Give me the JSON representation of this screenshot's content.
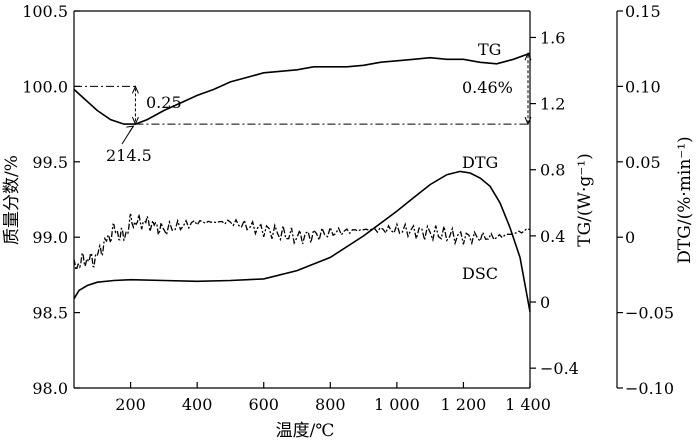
{
  "chart_data": {
    "type": "line",
    "x_axis": {
      "label": "温度/℃",
      "range": [
        30,
        1400
      ],
      "ticks": [
        200,
        400,
        600,
        800,
        1000,
        1200,
        1400
      ],
      "tick_labels": [
        "200",
        "400",
        "600",
        "800",
        "1 000",
        "1 200",
        "1 400"
      ]
    },
    "y_left": {
      "label": "质量分数/%",
      "range": [
        98.0,
        100.5
      ],
      "ticks": [
        98.0,
        98.5,
        99.0,
        99.5,
        100.0,
        100.5
      ],
      "tick_labels": [
        "98.0",
        "98.5",
        "99.0",
        "99.5",
        "100.0",
        "100.5"
      ]
    },
    "y_mid": {
      "label": "TG/(W·g⁻¹)",
      "range": [
        -0.52,
        1.76
      ],
      "ticks": [
        -0.4,
        0,
        0.4,
        0.8,
        1.2,
        1.6
      ],
      "tick_labels": [
        "−0.4",
        "0",
        "0.4",
        "0.8",
        "1.2",
        "1.6"
      ]
    },
    "y_right": {
      "label": "DTG/(%·min⁻¹)",
      "range": [
        -0.1,
        0.15
      ],
      "ticks": [
        -0.1,
        -0.05,
        0,
        0.05,
        0.1,
        0.15
      ],
      "tick_labels": [
        "−0.10",
        "−0.05",
        "0",
        "0.05",
        "0.10",
        "0.15"
      ]
    },
    "series": [
      {
        "name": "TG",
        "axis": "left",
        "style": "solid",
        "x": [
          30,
          60,
          100,
          140,
          180,
          214.5,
          250,
          300,
          350,
          400,
          450,
          500,
          550,
          600,
          650,
          700,
          750,
          800,
          850,
          900,
          950,
          1000,
          1050,
          1100,
          1150,
          1200,
          1250,
          1300,
          1350,
          1400
        ],
        "y": [
          99.98,
          99.92,
          99.84,
          99.78,
          99.75,
          99.75,
          99.78,
          99.84,
          99.89,
          99.94,
          99.98,
          100.03,
          100.06,
          100.09,
          100.1,
          100.11,
          100.13,
          100.13,
          100.13,
          100.14,
          100.16,
          100.17,
          100.18,
          100.19,
          100.18,
          100.18,
          100.16,
          100.15,
          100.18,
          100.22
        ]
      },
      {
        "name": "DTG",
        "axis": "mid",
        "style": "solid",
        "x": [
          30,
          45,
          70,
          100,
          150,
          200,
          300,
          400,
          500,
          600,
          700,
          800,
          900,
          1000,
          1050,
          1100,
          1150,
          1190,
          1220,
          1250,
          1280,
          1310,
          1340,
          1370,
          1400
        ],
        "y": [
          0.02,
          0.07,
          0.1,
          0.12,
          0.13,
          0.135,
          0.13,
          0.125,
          0.13,
          0.14,
          0.19,
          0.27,
          0.4,
          0.55,
          0.63,
          0.71,
          0.77,
          0.79,
          0.78,
          0.75,
          0.7,
          0.6,
          0.45,
          0.27,
          -0.06
        ]
      },
      {
        "name": "DSC",
        "axis": "left",
        "style": "dashdot",
        "x": [
          30,
          60,
          90,
          120,
          150,
          180,
          200,
          250,
          300,
          400,
          500,
          600,
          700,
          800,
          900,
          1000,
          1100,
          1200,
          1300,
          1400
        ],
        "y": [
          98.8,
          98.85,
          98.85,
          98.95,
          99.05,
          99.0,
          99.1,
          99.1,
          99.05,
          99.1,
          99.1,
          99.05,
          99.0,
          99.03,
          99.05,
          99.05,
          99.03,
          99.0,
          99.0,
          99.05
        ]
      }
    ],
    "annotations": {
      "point_label": "214.5",
      "loss_label": "0.25",
      "gain_label": "0.46%",
      "tg_label": "TG",
      "dtg_label": "DTG",
      "dsc_label": "DSC",
      "reference_levels": [
        100.0,
        99.75
      ]
    }
  }
}
